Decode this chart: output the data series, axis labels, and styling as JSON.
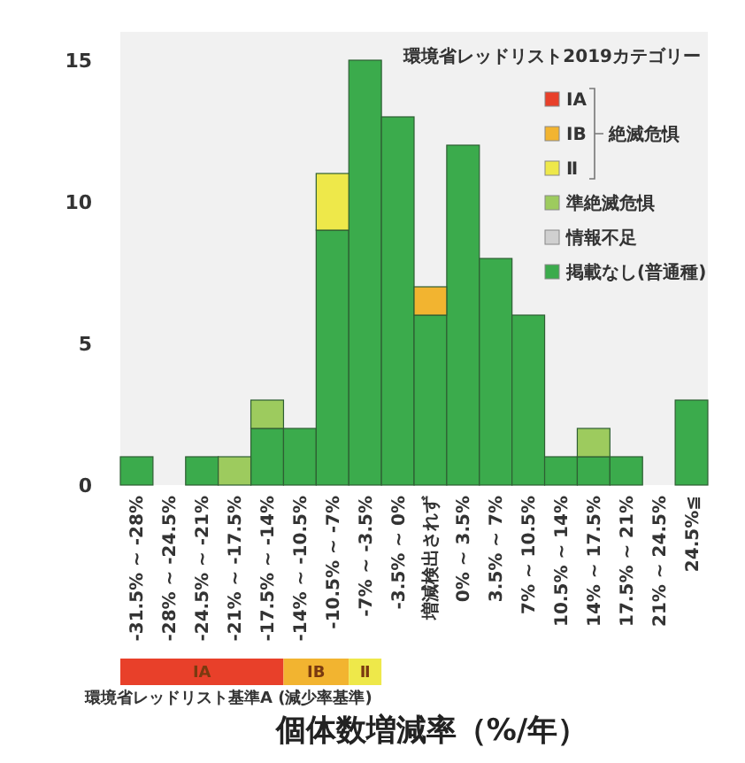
{
  "chart_data": {
    "type": "bar",
    "stacked": true,
    "xlabel": "個体数増減率（%/年）",
    "legend_title": "環境省レッドリスト2019カテゴリー",
    "legend": "top right",
    "grid": false,
    "categories": [
      "-31.5% ~ -28%",
      "-28% ~ -24.5%",
      "-24.5% ~ -21%",
      "-21% ~ -17.5%",
      "-17.5% ~ -14%",
      "-14% ~ -10.5%",
      "-10.5% ~ -7%",
      "-7% ~ -3.5%",
      "-3.5% ~ 0%",
      "増減検出されず",
      "0% ~ 3.5%",
      "3.5% ~ 7%",
      "7% ~ 10.5%",
      "10.5% ~ 14%",
      "14% ~ 17.5%",
      "17.5% ~ 21%",
      "21% ~ 24.5%",
      "24.5%≦"
    ],
    "series": [
      {
        "name": "掲載なし(普通種)",
        "color": "#3bab4c",
        "values": [
          1,
          0,
          1,
          0,
          2,
          2,
          9,
          15,
          13,
          6,
          12,
          8,
          6,
          1,
          1,
          1,
          0,
          3
        ]
      },
      {
        "name": "情報不足",
        "color": "#d0d0d0",
        "values": [
          0,
          0,
          0,
          0,
          0,
          0,
          0,
          0,
          0,
          0,
          0,
          0,
          0,
          0,
          0,
          0,
          0,
          0
        ]
      },
      {
        "name": "準絶滅危惧",
        "color": "#9dcb5e",
        "values": [
          0,
          0,
          0,
          1,
          1,
          0,
          0,
          0,
          0,
          0,
          0,
          0,
          0,
          0,
          1,
          0,
          0,
          0
        ]
      },
      {
        "name": "Ⅱ",
        "color": "#eee84a",
        "values": [
          0,
          0,
          0,
          0,
          0,
          0,
          2,
          0,
          0,
          0,
          0,
          0,
          0,
          0,
          0,
          0,
          0,
          0
        ]
      },
      {
        "name": "ⅠB",
        "color": "#f2b430",
        "values": [
          0,
          0,
          0,
          0,
          0,
          0,
          0,
          0,
          0,
          1,
          0,
          0,
          0,
          0,
          0,
          0,
          0,
          0
        ]
      },
      {
        "name": "ⅠA",
        "color": "#e8402a",
        "values": [
          0,
          0,
          0,
          0,
          0,
          0,
          0,
          0,
          0,
          0,
          0,
          0,
          0,
          0,
          0,
          0,
          0,
          0
        ]
      }
    ],
    "ylim": [
      0,
      16
    ],
    "yticks": [
      0,
      5,
      10,
      15
    ],
    "annotations": [
      "絶滅危惧",
      "環境省レッドリスト基準A (減少率基準)",
      "IA",
      "IB",
      "Ⅱ"
    ]
  }
}
